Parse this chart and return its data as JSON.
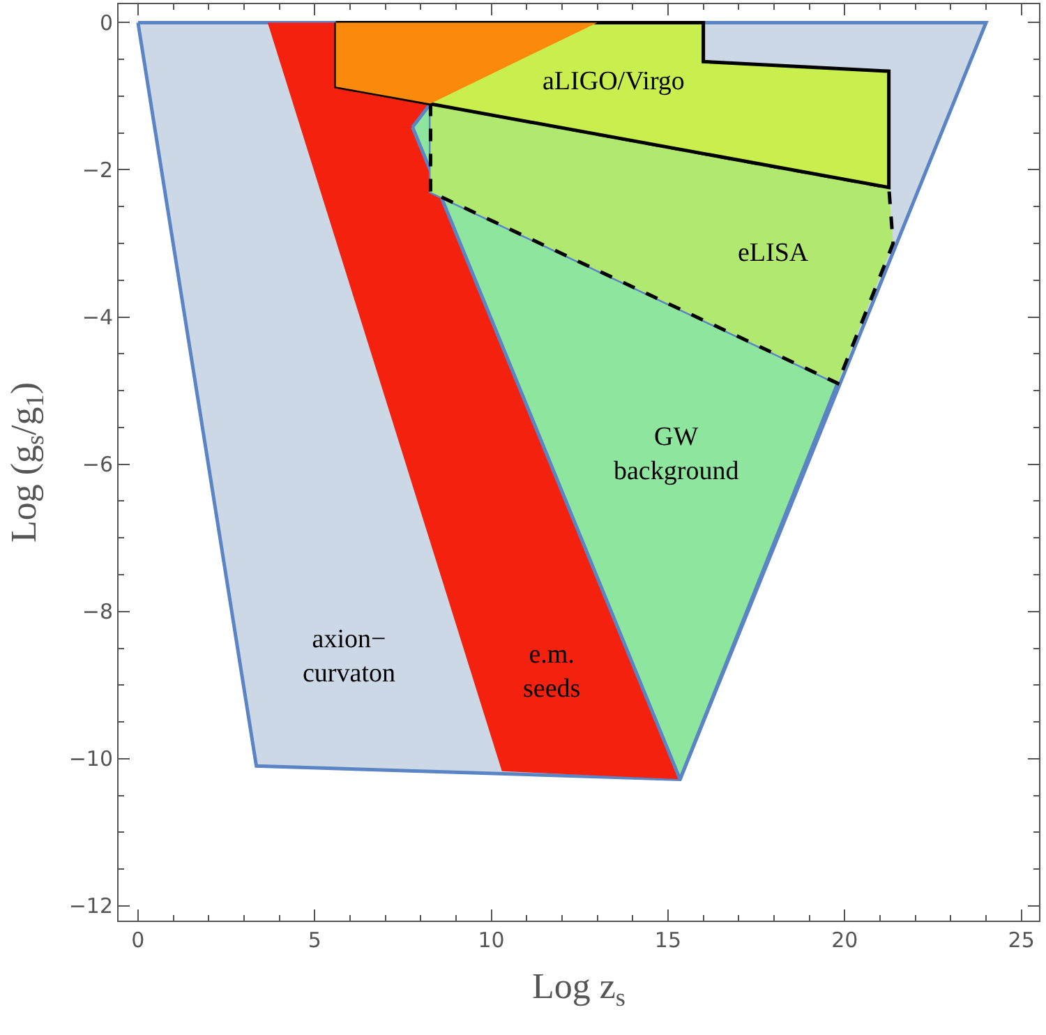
{
  "chart_data": {
    "type": "area",
    "xlabel": "Log z$_{s}$",
    "ylabel": "Log (g$_{s}$/g$_{1}$)",
    "xlim": [
      -0.55,
      25.5
    ],
    "ylim": [
      -12.2,
      0.25
    ],
    "xticks": [
      0,
      5,
      10,
      15,
      20,
      25
    ],
    "yticks": [
      {
        "value": 0,
        "label": "0"
      },
      {
        "value": -2,
        "label": "−2"
      },
      {
        "value": -4,
        "label": "−4"
      },
      {
        "value": -6,
        "label": "−6"
      },
      {
        "value": -8,
        "label": "−8"
      },
      {
        "value": -10,
        "label": "−10"
      },
      {
        "value": -12,
        "label": "−12"
      }
    ],
    "legend": false,
    "marker": "none",
    "series": [
      {
        "name": "axion−\ncurvaton",
        "color": "#ccd8e6",
        "x": [
          0,
          24,
          15.34,
          3.35
        ],
        "values": [
          0,
          0,
          -10.28,
          -10.1
        ]
      },
      {
        "name": "e.m.\nseeds",
        "color": "#f5210f",
        "x": [
          3.67,
          5.6,
          5.6,
          8.28,
          7.77,
          15.34,
          10.3
        ],
        "values": [
          0,
          0,
          -0.87,
          -1.1,
          -1.42,
          -10.28,
          -10.17
        ]
      },
      {
        "name": "GW\nbackground",
        "color": "#8ee59e",
        "x": [
          7.77,
          8.28,
          8.28,
          19.8,
          15.34
        ],
        "values": [
          -1.42,
          -1.1,
          -2.3,
          -4.9,
          -10.28
        ]
      },
      {
        "name": "eLISA",
        "color": "#b0e870",
        "line_style": "dashed",
        "x": [
          8.28,
          8.28,
          19.8,
          21.37,
          21.25
        ],
        "values": [
          -1.1,
          -2.3,
          -4.9,
          -3.0,
          -2.24
        ]
      },
      {
        "name": "aLIGO/Virgo",
        "color": "#c9ef4f",
        "x": [
          5.6,
          16,
          16,
          21.25,
          21.25,
          5.6
        ],
        "values": [
          0,
          0,
          -0.53,
          -0.66,
          -2.24,
          -0.87
        ]
      },
      {
        "color": "#fb8a0c",
        "x": [
          5.6,
          13.0,
          8.28,
          5.6
        ],
        "values": [
          0,
          0,
          -1.1,
          -0.87
        ]
      }
    ]
  }
}
